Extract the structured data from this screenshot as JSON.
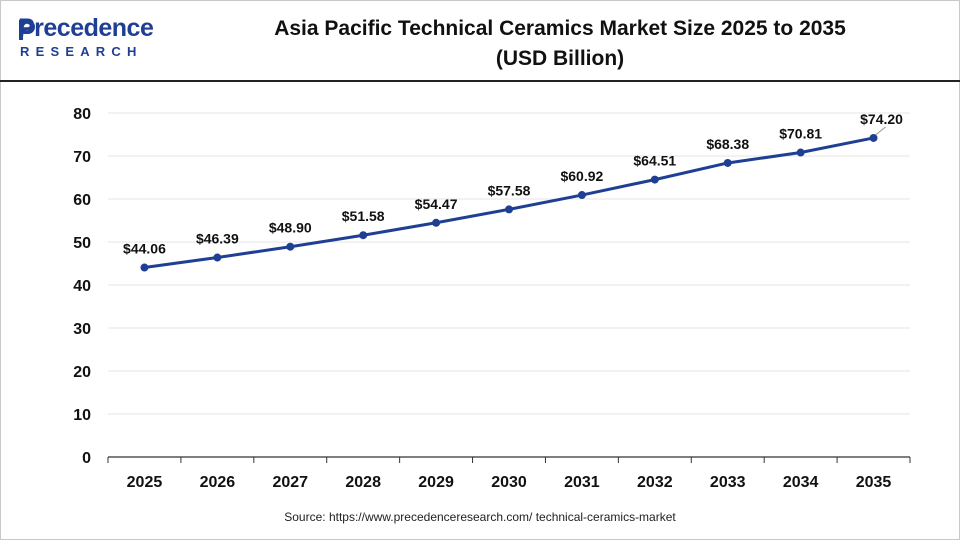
{
  "header": {
    "logo_brand": "Precedence",
    "logo_sub": "RESEARCH",
    "title_line1": "Asia Pacific Technical Ceramics Market Size 2025 to 2035",
    "title_line2": "(USD Billion)"
  },
  "source": "Source: https://www.precedenceresearch.com/ technical-ceramics-market",
  "colors": {
    "brand": "#1f3f94",
    "line": "#1f3f94",
    "grid": "#e6e6e6",
    "axis": "#333333"
  },
  "icons": {
    "logo_mark": "precedence-logo-icon"
  },
  "chart_data": {
    "type": "line",
    "categories": [
      "2025",
      "2026",
      "2027",
      "2028",
      "2029",
      "2030",
      "2031",
      "2032",
      "2033",
      "2034",
      "2035"
    ],
    "series": [
      {
        "values": [
          44.06,
          46.39,
          48.9,
          51.58,
          54.47,
          57.58,
          60.92,
          64.51,
          68.38,
          70.81,
          74.2
        ],
        "labels": [
          "$44.06",
          "$46.39",
          "$48.90",
          "$51.58",
          "$54.47",
          "$57.58",
          "$60.92",
          "$64.51",
          "$68.38",
          "$70.81",
          "$74.20"
        ]
      }
    ],
    "yticks": [
      "0",
      "10",
      "20",
      "30",
      "40",
      "50",
      "60",
      "70",
      "80"
    ],
    "ylim": [
      0,
      80
    ],
    "grid": true,
    "legend": false,
    "title": "Asia Pacific Technical Ceramics Market Size 2025 to 2035 (USD Billion)",
    "xlabel": "",
    "ylabel": ""
  }
}
